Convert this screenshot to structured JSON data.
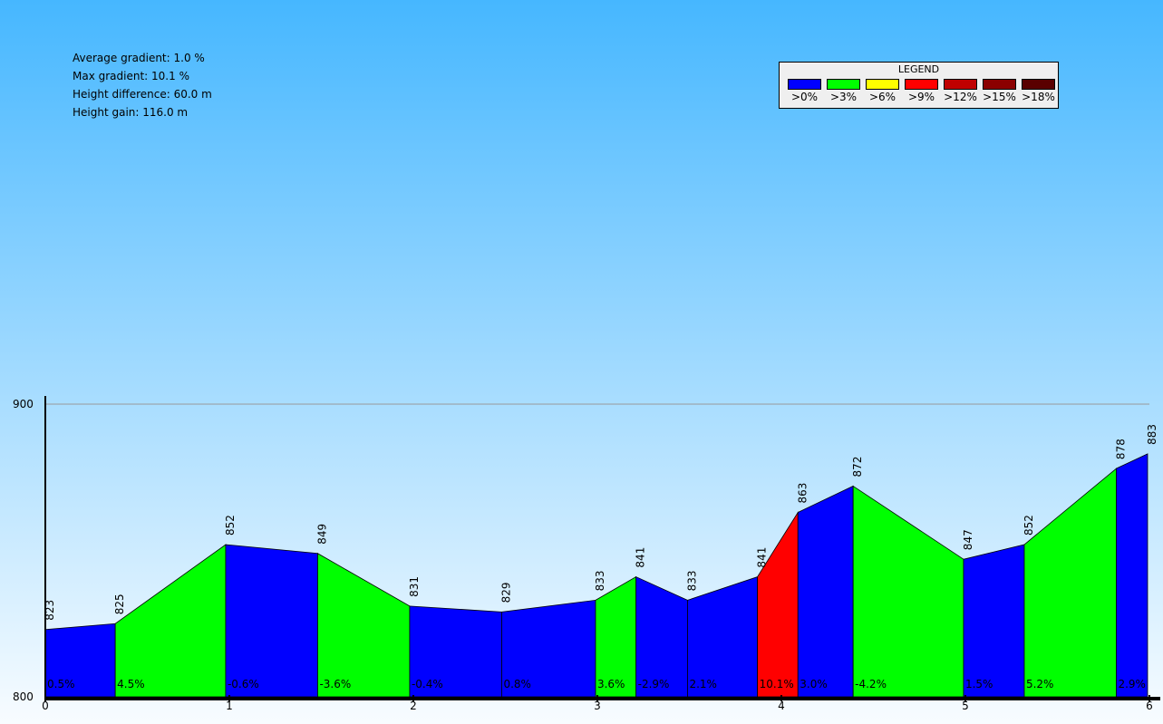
{
  "stats": {
    "avg": "Average gradient: 1.0 %",
    "max": "Max gradient: 10.1 %",
    "diff": "Height difference: 60.0 m",
    "gain": "Height gain: 116.0 m"
  },
  "legend": {
    "title": "LEGEND",
    "items": [
      {
        "label": ">0%",
        "color": "#0000ff"
      },
      {
        "label": ">3%",
        "color": "#00ff00"
      },
      {
        "label": ">6%",
        "color": "#ffff00"
      },
      {
        "label": ">9%",
        "color": "#ff0000"
      },
      {
        "label": ">12%",
        "color": "#c00000"
      },
      {
        "label": ">15%",
        "color": "#8b0000"
      },
      {
        "label": ">18%",
        "color": "#5a0000"
      }
    ]
  },
  "chart_data": {
    "type": "area",
    "xlim": [
      0,
      6
    ],
    "ylim": [
      800,
      900
    ],
    "x_ticks": [
      "0",
      "1",
      "2",
      "3",
      "4",
      "5",
      "6"
    ],
    "y_ticks": [
      "800",
      "900"
    ],
    "grid": "horizontal line at 900",
    "points": [
      {
        "x": 0.0,
        "elev": 823
      },
      {
        "x": 0.38,
        "elev": 825
      },
      {
        "x": 0.98,
        "elev": 852
      },
      {
        "x": 1.48,
        "elev": 849
      },
      {
        "x": 1.98,
        "elev": 831
      },
      {
        "x": 2.48,
        "elev": 829
      },
      {
        "x": 2.99,
        "elev": 833
      },
      {
        "x": 3.21,
        "elev": 841
      },
      {
        "x": 3.49,
        "elev": 833
      },
      {
        "x": 3.87,
        "elev": 841
      },
      {
        "x": 4.09,
        "elev": 863
      },
      {
        "x": 4.39,
        "elev": 872
      },
      {
        "x": 4.99,
        "elev": 847
      },
      {
        "x": 5.32,
        "elev": 852
      },
      {
        "x": 5.82,
        "elev": 878
      },
      {
        "x": 5.99,
        "elev": 883
      }
    ],
    "segments": [
      {
        "grade": "0.5%",
        "color": "#0000ff"
      },
      {
        "grade": "4.5%",
        "color": "#00ff00"
      },
      {
        "grade": "-0.6%",
        "color": "#0000ff"
      },
      {
        "grade": "-3.6%",
        "color": "#00ff00"
      },
      {
        "grade": "-0.4%",
        "color": "#0000ff"
      },
      {
        "grade": "0.8%",
        "color": "#0000ff"
      },
      {
        "grade": "3.6%",
        "color": "#00ff00"
      },
      {
        "grade": "-2.9%",
        "color": "#0000ff"
      },
      {
        "grade": "2.1%",
        "color": "#0000ff"
      },
      {
        "grade": "10.1%",
        "color": "#ff0000"
      },
      {
        "grade": "3.0%",
        "color": "#0000ff"
      },
      {
        "grade": "-4.2%",
        "color": "#00ff00"
      },
      {
        "grade": "1.5%",
        "color": "#0000ff"
      },
      {
        "grade": "5.2%",
        "color": "#00ff00"
      },
      {
        "grade": "2.9%",
        "color": "#0000ff"
      }
    ]
  }
}
